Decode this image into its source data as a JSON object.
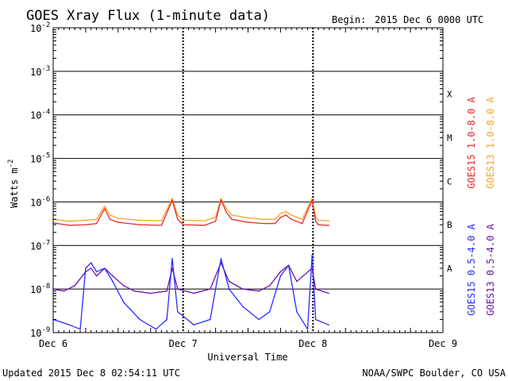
{
  "header": {
    "title": "GOES Xray Flux (1-minute data)",
    "begin_label": "Begin:",
    "begin_value": "2015 Dec 6 0000 UTC"
  },
  "footer": {
    "updated": "Updated 2015 Dec  8 02:54:11 UTC",
    "credit": "NOAA/SWPC Boulder, CO USA"
  },
  "chart_data": {
    "type": "line",
    "y_scale": "log",
    "ylim": [
      1e-09,
      0.01
    ],
    "ylabel": "Watts m",
    "ylabel_superscript": "-2",
    "xlabel": "Universal Time",
    "x_start": "2015-12-06",
    "x_end": "2015-12-09",
    "x_ticks": [
      "Dec 6",
      "Dec 7",
      "Dec 8",
      "Dec 9"
    ],
    "y_ticks": [
      {
        "base": "10",
        "exp": "-2",
        "value": 0.01
      },
      {
        "base": "10",
        "exp": "-3",
        "value": 0.001
      },
      {
        "base": "10",
        "exp": "-4",
        "value": 0.0001
      },
      {
        "base": "10",
        "exp": "-5",
        "value": 1e-05
      },
      {
        "base": "10",
        "exp": "-6",
        "value": 1e-06
      },
      {
        "base": "10",
        "exp": "-7",
        "value": 1e-07
      },
      {
        "base": "10",
        "exp": "-8",
        "value": 1e-08
      },
      {
        "base": "10",
        "exp": "-9",
        "value": 1e-09
      }
    ],
    "flare_classes": [
      {
        "label": "X",
        "value": 0.0003
      },
      {
        "label": "M",
        "value": 3e-05
      },
      {
        "label": "C",
        "value": 3e-06
      },
      {
        "label": "B",
        "value": 3e-07
      },
      {
        "label": "A",
        "value": 3e-08
      }
    ],
    "legend_right": [
      {
        "label": "GOES15 1.0-8.0 A",
        "color": "#e8282a"
      },
      {
        "label": "GOES13 1.0-8.0 A",
        "color": "#f5a623"
      },
      {
        "label": "GOES15 0.5-4.0 A",
        "color": "#2b2bff"
      },
      {
        "label": "GOES13 0.5-4.0 A",
        "color": "#6a12b0"
      }
    ],
    "series": [
      {
        "name": "GOES13 1.0-8.0 A",
        "color": "#f5a623",
        "x": [
          "2015-12-06 00:00",
          "2015-12-06 03:00",
          "2015-12-06 06:00",
          "2015-12-06 08:00",
          "2015-12-06 09:30",
          "2015-12-06 10:30",
          "2015-12-06 12:00",
          "2015-12-06 16:00",
          "2015-12-06 20:00",
          "2015-12-06 22:00",
          "2015-12-06 23:00",
          "2015-12-07 00:00",
          "2015-12-07 04:00",
          "2015-12-07 06:00",
          "2015-12-07 07:00",
          "2015-12-07 08:00",
          "2015-12-07 09:00",
          "2015-12-07 12:00",
          "2015-12-07 15:00",
          "2015-12-07 17:00",
          "2015-12-07 18:00",
          "2015-12-07 19:00",
          "2015-12-07 20:00",
          "2015-12-07 22:00",
          "2015-12-07 23:50",
          "2015-12-08 00:30",
          "2015-12-08 01:00",
          "2015-12-08 02:54"
        ],
        "values": [
          4e-07,
          3.6e-07,
          3.8e-07,
          4e-07,
          8e-07,
          5e-07,
          4.2e-07,
          3.8e-07,
          3.7e-07,
          1.2e-06,
          5e-07,
          3.8e-07,
          3.7e-07,
          4.5e-07,
          1.2e-06,
          7e-07,
          5e-07,
          4.3e-07,
          4e-07,
          4e-07,
          5.5e-07,
          6e-07,
          5e-07,
          4e-07,
          1.2e-06,
          4.5e-07,
          3.8e-07,
          3.7e-07
        ]
      },
      {
        "name": "GOES15 1.0-8.0 A",
        "color": "#e8282a",
        "x": [
          "2015-12-06 00:00",
          "2015-12-06 03:00",
          "2015-12-06 06:00",
          "2015-12-06 08:00",
          "2015-12-06 09:30",
          "2015-12-06 10:30",
          "2015-12-06 12:00",
          "2015-12-06 16:00",
          "2015-12-06 20:00",
          "2015-12-06 22:00",
          "2015-12-06 23:00",
          "2015-12-07 00:00",
          "2015-12-07 04:00",
          "2015-12-07 06:00",
          "2015-12-07 07:00",
          "2015-12-07 08:00",
          "2015-12-07 09:00",
          "2015-12-07 12:00",
          "2015-12-07 15:00",
          "2015-12-07 17:00",
          "2015-12-07 18:00",
          "2015-12-07 19:00",
          "2015-12-07 20:00",
          "2015-12-07 22:00",
          "2015-12-07 23:50",
          "2015-12-08 00:30",
          "2015-12-08 01:00",
          "2015-12-08 02:54"
        ],
        "values": [
          3.3e-07,
          2.9e-07,
          3e-07,
          3.2e-07,
          7e-07,
          4e-07,
          3.4e-07,
          3e-07,
          2.9e-07,
          1.1e-06,
          4e-07,
          3e-07,
          2.9e-07,
          3.6e-07,
          1.1e-06,
          5.8e-07,
          4e-07,
          3.4e-07,
          3.2e-07,
          3.2e-07,
          4.4e-07,
          5e-07,
          4e-07,
          3.2e-07,
          1.1e-06,
          3.6e-07,
          3e-07,
          2.9e-07
        ]
      },
      {
        "name": "GOES13 0.5-4.0 A",
        "color": "#6a12b0",
        "x": [
          "2015-12-06 00:00",
          "2015-12-06 02:00",
          "2015-12-06 04:00",
          "2015-12-06 06:00",
          "2015-12-06 07:00",
          "2015-12-06 08:00",
          "2015-12-06 09:30",
          "2015-12-06 11:00",
          "2015-12-06 13:00",
          "2015-12-06 15:00",
          "2015-12-06 18:00",
          "2015-12-06 21:00",
          "2015-12-06 22:00",
          "2015-12-06 23:00",
          "2015-12-07 02:00",
          "2015-12-07 05:00",
          "2015-12-07 07:00",
          "2015-12-07 08:30",
          "2015-12-07 11:00",
          "2015-12-07 14:00",
          "2015-12-07 16:00",
          "2015-12-07 18:00",
          "2015-12-07 19:30",
          "2015-12-07 21:00",
          "2015-12-07 23:50",
          "2015-12-08 00:30",
          "2015-12-08 02:54"
        ],
        "values": [
          1e-08,
          9e-09,
          1.2e-08,
          2.5e-08,
          3e-08,
          2e-08,
          3e-08,
          2e-08,
          1.2e-08,
          9e-09,
          8e-09,
          9e-09,
          3e-08,
          1e-08,
          8e-09,
          1e-08,
          4e-08,
          1.5e-08,
          1e-08,
          9e-09,
          1.2e-08,
          2.5e-08,
          3.5e-08,
          1.5e-08,
          3e-08,
          1e-08,
          8e-09
        ]
      },
      {
        "name": "GOES15 0.5-4.0 A",
        "color": "#2b2bff",
        "x": [
          "2015-12-06 00:00",
          "2015-12-06 03:00",
          "2015-12-06 05:00",
          "2015-12-06 06:00",
          "2015-12-06 07:00",
          "2015-12-06 08:00",
          "2015-12-06 09:30",
          "2015-12-06 11:00",
          "2015-12-06 13:00",
          "2015-12-06 16:00",
          "2015-12-06 19:00",
          "2015-12-06 21:00",
          "2015-12-06 22:00",
          "2015-12-06 23:00",
          "2015-12-07 02:00",
          "2015-12-07 05:00",
          "2015-12-07 07:00",
          "2015-12-07 08:30",
          "2015-12-07 11:00",
          "2015-12-07 14:00",
          "2015-12-07 16:00",
          "2015-12-07 18:00",
          "2015-12-07 19:30",
          "2015-12-07 21:00",
          "2015-12-07 23:00",
          "2015-12-07 23:50",
          "2015-12-08 00:30",
          "2015-12-08 02:54"
        ],
        "values": [
          2e-09,
          1.5e-09,
          1.2e-09,
          3e-08,
          4e-08,
          2.5e-08,
          3e-08,
          1.5e-08,
          5e-09,
          2e-09,
          1.2e-09,
          2e-09,
          5e-08,
          3e-09,
          1.5e-09,
          2e-09,
          5e-08,
          1e-08,
          4e-09,
          2e-09,
          3e-09,
          2e-08,
          3.5e-08,
          3e-09,
          1.2e-09,
          6e-08,
          2e-09,
          1.5e-09
        ]
      }
    ]
  }
}
